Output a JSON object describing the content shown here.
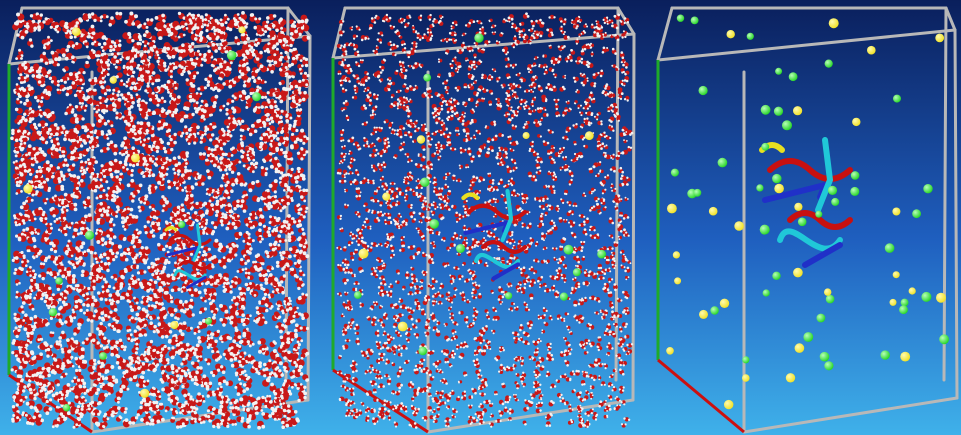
{
  "colors": {
    "background_top": "#0a1f5c",
    "background_mid": "#1f5fbf",
    "background_bottom": "#3fb1ea",
    "box_edge": "#b8b8b8",
    "axis_x": "#cc1010",
    "axis_y": "#1faa2a",
    "axis_z": "#1030c0",
    "water_oxygen": "#c81818",
    "water_hydrogen": "#f2f2f2",
    "ion_chloride": "#22d422",
    "ion_sodium": "#f0e020",
    "protein_helix": "#c81010",
    "protein_sheet": "#2030c8",
    "protein_coil": "#20c8d8",
    "protein_turn": "#e8e020"
  },
  "panels": [
    {
      "name": "full-water-box",
      "water_density": "high",
      "protein_visible": "partial"
    },
    {
      "name": "sparse-water-box",
      "water_density": "medium",
      "protein_visible": "partial"
    },
    {
      "name": "ions-and-protein-only",
      "water_density": "none",
      "protein_visible": "full"
    }
  ],
  "icons": [
    "sodium-ion-sphere",
    "chloride-ion-sphere",
    "protein-ribbon",
    "simulation-box"
  ]
}
